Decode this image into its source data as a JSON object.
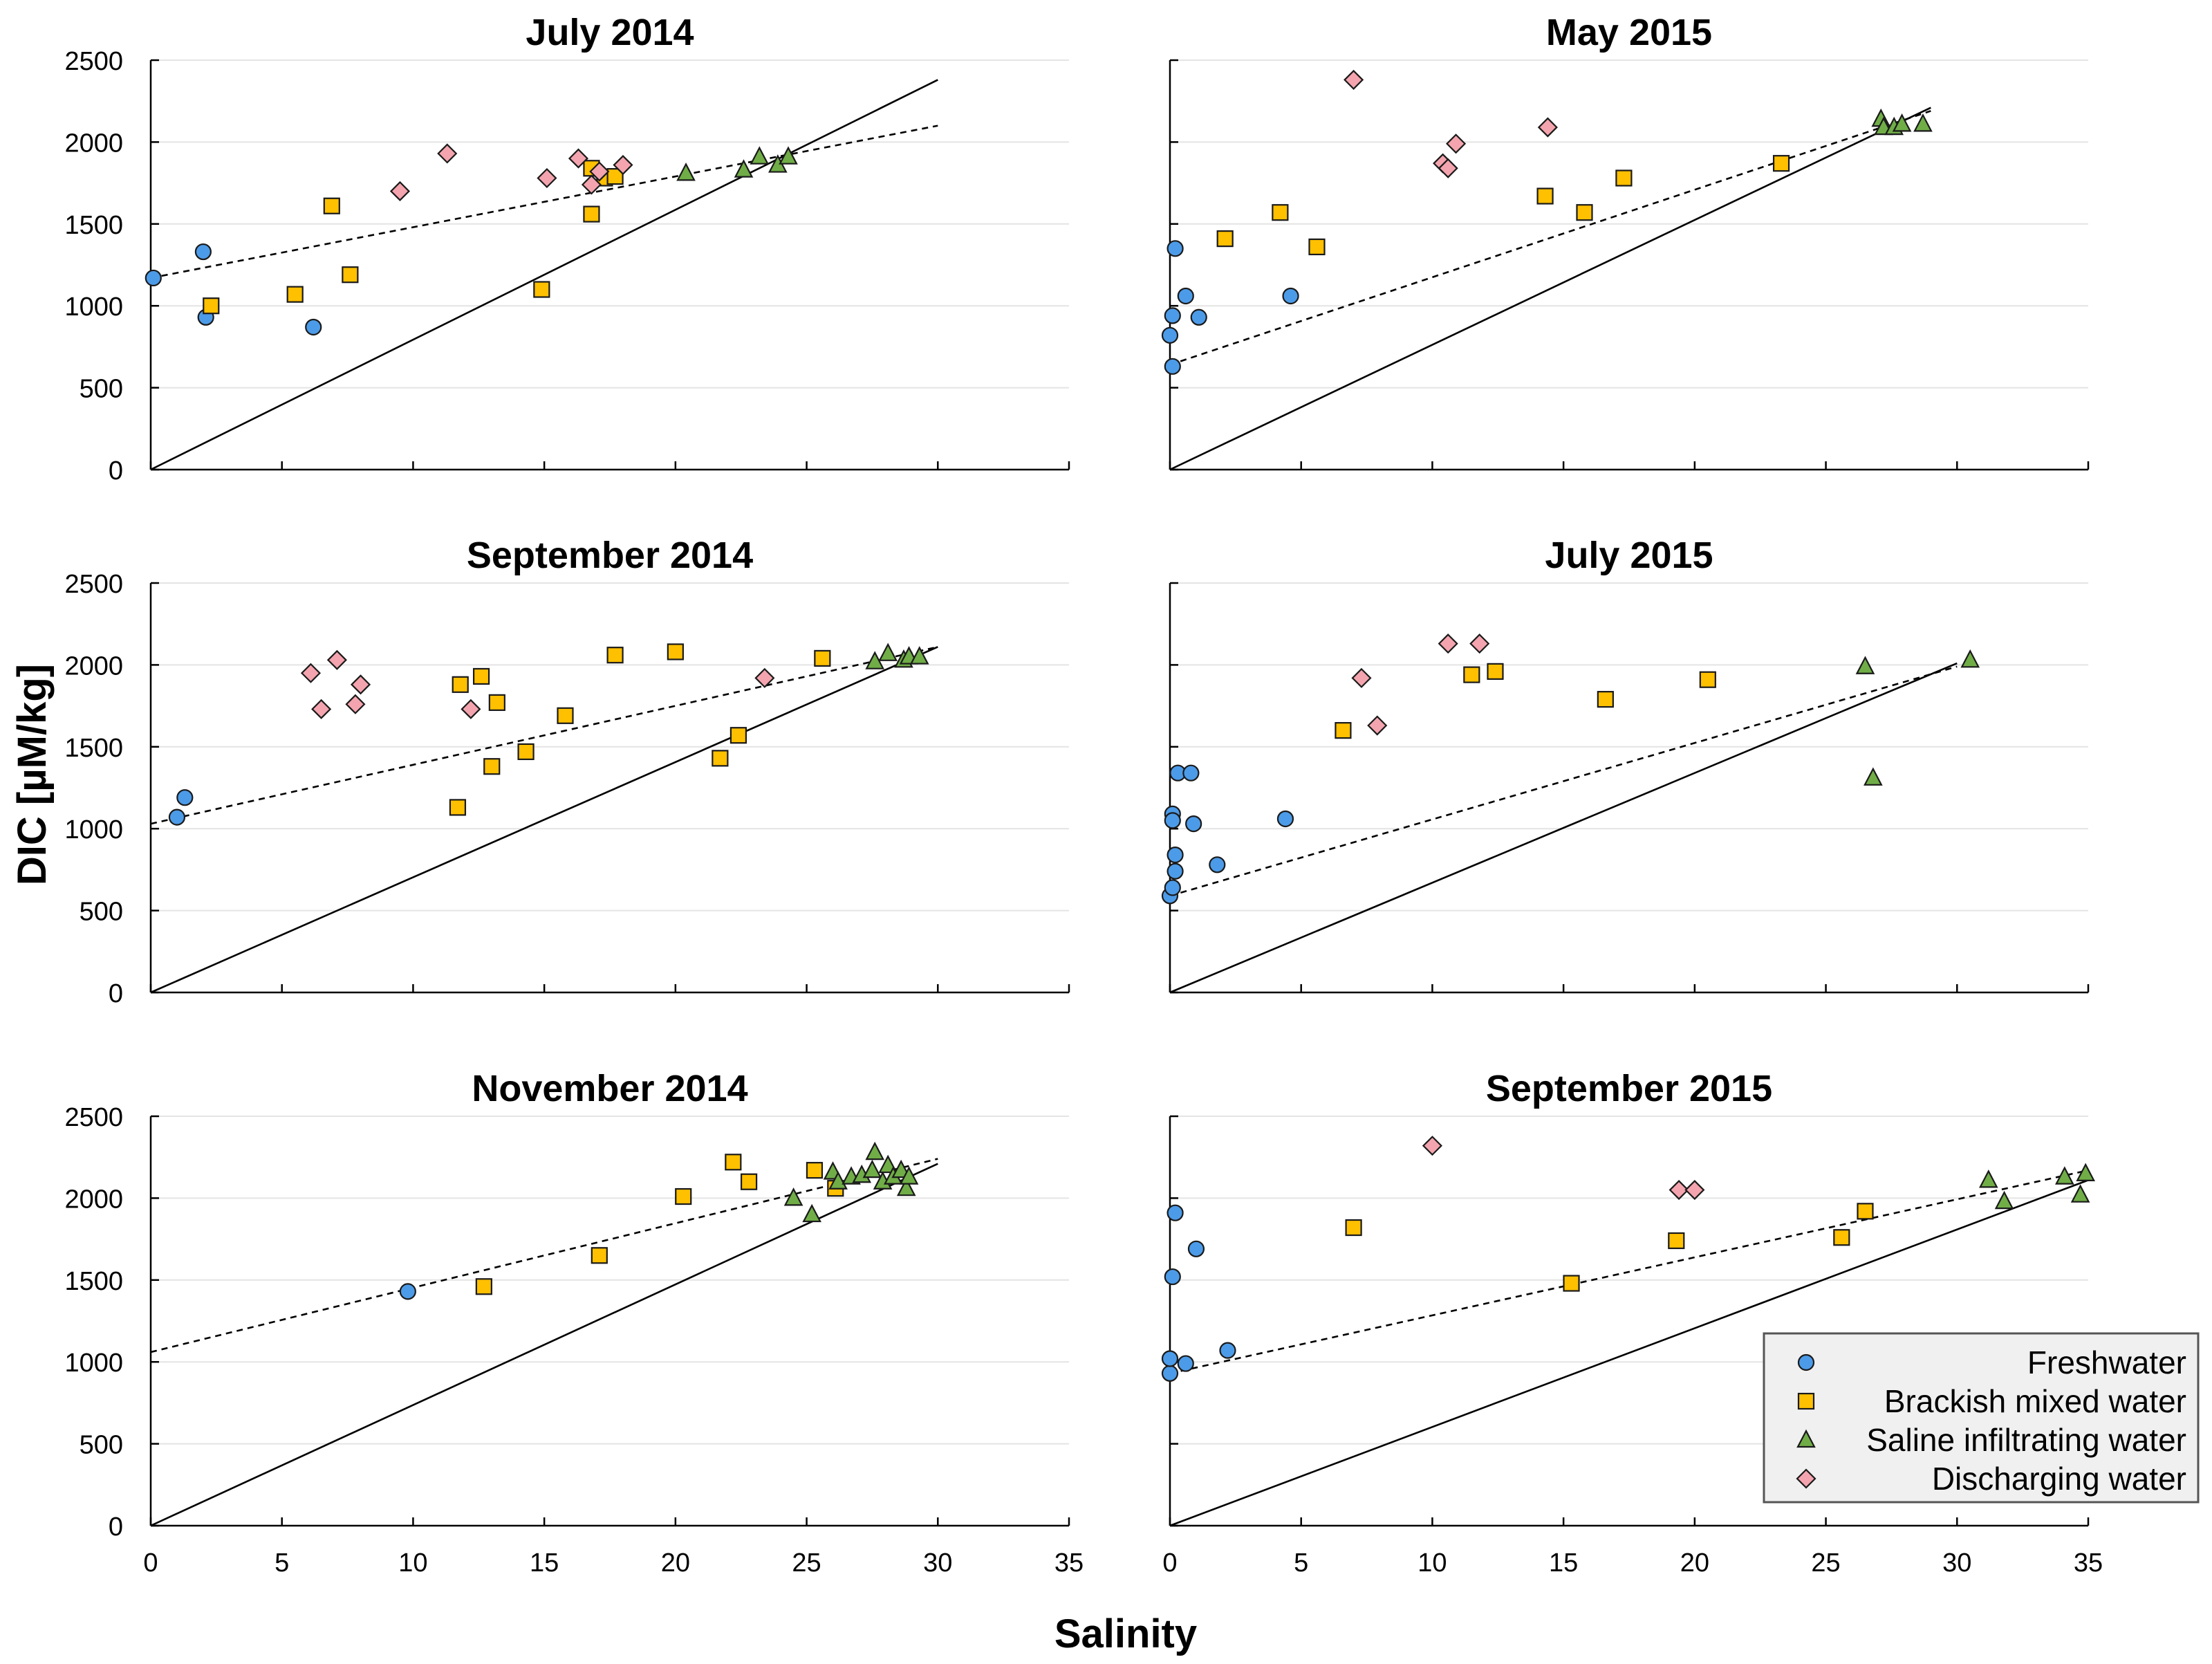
{
  "figure": {
    "xlabel": "Salinity",
    "ylabel": "DIC [µM/kg]",
    "x_ticks": [
      "0",
      "5",
      "10",
      "15",
      "20",
      "25",
      "30",
      "35"
    ],
    "y_ticks": [
      "0",
      "500",
      "1000",
      "1500",
      "2000",
      "2500"
    ]
  },
  "legend": {
    "entries": [
      {
        "label": "Freshwater",
        "marker": "circle",
        "color": "#4c9be8"
      },
      {
        "label": "Brackish mixed water",
        "marker": "square",
        "color": "#ffc000"
      },
      {
        "label": "Saline infiltrating water",
        "marker": "triangle",
        "color": "#70ad47"
      },
      {
        "label": "Discharging water",
        "marker": "diamond",
        "color": "#f4a4ae"
      }
    ]
  },
  "colors": {
    "freshwater": "#4c9be8",
    "brackish": "#ffc000",
    "saline": "#70ad47",
    "discharging": "#f4a4ae",
    "grid": "#e4e4e4",
    "legend_bg": "#f0f0f0"
  },
  "chart_data": [
    {
      "type": "scatter",
      "title": "July 2014",
      "xlim": [
        0,
        35
      ],
      "ylim": [
        0,
        2500
      ],
      "xlabel": "Salinity",
      "ylabel": "DIC [µM/kg]",
      "solid_line": {
        "x": [
          0,
          30
        ],
        "y": [
          0,
          2380
        ]
      },
      "dashed_line": {
        "x": [
          0,
          30
        ],
        "y": [
          1170,
          2100
        ]
      },
      "series": [
        {
          "name": "Freshwater",
          "x": [
            0.1,
            2.0,
            2.1,
            6.2
          ],
          "y": [
            1170,
            1330,
            930,
            870
          ]
        },
        {
          "name": "Brackish mixed water",
          "x": [
            2.3,
            5.5,
            6.9,
            7.6,
            14.9,
            16.8,
            16.8,
            17.3,
            17.7
          ],
          "y": [
            1000,
            1070,
            1610,
            1190,
            1100,
            1840,
            1560,
            1780,
            1790
          ]
        },
        {
          "name": "Saline infiltrating water",
          "x": [
            20.4,
            22.6,
            23.2,
            23.9,
            24.3
          ],
          "y": [
            1810,
            1830,
            1910,
            1860,
            1910
          ]
        },
        {
          "name": "Discharging water",
          "x": [
            9.5,
            11.3,
            15.1,
            16.3,
            16.8,
            17.1,
            18.0
          ],
          "y": [
            1700,
            1930,
            1780,
            1900,
            1740,
            1820,
            1860
          ]
        }
      ]
    },
    {
      "type": "scatter",
      "title": "May 2015",
      "xlim": [
        0,
        35
      ],
      "ylim": [
        0,
        2500
      ],
      "xlabel": "Salinity",
      "ylabel": "DIC [µM/kg]",
      "solid_line": {
        "x": [
          0,
          29
        ],
        "y": [
          0,
          2210
        ]
      },
      "dashed_line": {
        "x": [
          0,
          29
        ],
        "y": [
          640,
          2190
        ]
      },
      "series": [
        {
          "name": "Freshwater",
          "x": [
            0.1,
            0.2,
            0.0,
            0.1,
            0.6,
            1.1,
            4.6
          ],
          "y": [
            630,
            1350,
            820,
            940,
            1060,
            930,
            1060
          ]
        },
        {
          "name": "Brackish mixed water",
          "x": [
            2.1,
            4.2,
            5.6,
            14.3,
            15.8,
            17.3,
            23.3
          ],
          "y": [
            1410,
            1570,
            1360,
            1670,
            1570,
            1780,
            1870
          ]
        },
        {
          "name": "Saline infiltrating water",
          "x": [
            27.1,
            27.2,
            27.6,
            27.9,
            28.7
          ],
          "y": [
            2140,
            2090,
            2090,
            2110,
            2110
          ]
        },
        {
          "name": "Discharging water",
          "x": [
            7.0,
            10.4,
            10.6,
            10.9,
            14.4
          ],
          "y": [
            2380,
            1870,
            1840,
            1990,
            2090
          ]
        }
      ]
    },
    {
      "type": "scatter",
      "title": "September 2014",
      "xlim": [
        0,
        35
      ],
      "ylim": [
        0,
        2500
      ],
      "xlabel": "Salinity",
      "ylabel": "DIC [µM/kg]",
      "solid_line": {
        "x": [
          0,
          30
        ],
        "y": [
          0,
          2110
        ]
      },
      "dashed_line": {
        "x": [
          0,
          30
        ],
        "y": [
          1030,
          2110
        ]
      },
      "series": [
        {
          "name": "Freshwater",
          "x": [
            1.0,
            1.3
          ],
          "y": [
            1070,
            1190
          ]
        },
        {
          "name": "Brackish mixed water",
          "x": [
            11.7,
            11.8,
            12.6,
            13.0,
            13.2,
            15.8,
            17.7,
            14.3,
            20.0,
            21.7,
            22.4,
            25.6
          ],
          "y": [
            1130,
            1880,
            1930,
            1380,
            1770,
            1690,
            2060,
            1470,
            2080,
            1430,
            1570,
            2040
          ]
        },
        {
          "name": "Saline infiltrating water",
          "x": [
            27.6,
            28.1,
            28.7,
            28.9,
            29.3
          ],
          "y": [
            2020,
            2070,
            2030,
            2050,
            2050
          ]
        },
        {
          "name": "Discharging water",
          "x": [
            6.1,
            6.5,
            7.1,
            7.8,
            8.0,
            12.2,
            23.4
          ],
          "y": [
            1950,
            1730,
            2030,
            1760,
            1880,
            1730,
            1920
          ]
        }
      ]
    },
    {
      "type": "scatter",
      "title": "July 2015",
      "xlim": [
        0,
        35
      ],
      "ylim": [
        0,
        2500
      ],
      "xlabel": "Salinity",
      "ylabel": "DIC [µM/kg]",
      "solid_line": {
        "x": [
          0,
          30
        ],
        "y": [
          0,
          2010
        ]
      },
      "dashed_line": {
        "x": [
          0,
          30
        ],
        "y": [
          590,
          1990
        ]
      },
      "series": [
        {
          "name": "Freshwater",
          "x": [
            0.0,
            0.1,
            0.2,
            0.1,
            0.1,
            0.2,
            0.3,
            0.8,
            0.9,
            1.8,
            4.4
          ],
          "y": [
            590,
            640,
            840,
            1090,
            1050,
            740,
            1340,
            1340,
            1030,
            780,
            1060
          ]
        },
        {
          "name": "Brackish mixed water",
          "x": [
            6.6,
            11.5,
            12.4,
            16.6,
            20.5
          ],
          "y": [
            1600,
            1940,
            1960,
            1790,
            1910
          ]
        },
        {
          "name": "Saline infiltrating water",
          "x": [
            26.5,
            26.8,
            30.5
          ],
          "y": [
            1990,
            1310,
            2030
          ]
        },
        {
          "name": "Discharging water",
          "x": [
            7.3,
            7.9,
            10.6,
            11.8
          ],
          "y": [
            1920,
            1630,
            2130,
            2130
          ]
        }
      ]
    },
    {
      "type": "scatter",
      "title": "November 2014",
      "xlim": [
        0,
        35
      ],
      "ylim": [
        0,
        2500
      ],
      "xlabel": "Salinity",
      "ylabel": "DIC [µM/kg]",
      "solid_line": {
        "x": [
          0,
          30
        ],
        "y": [
          0,
          2210
        ]
      },
      "dashed_line": {
        "x": [
          0,
          30
        ],
        "y": [
          1060,
          2240
        ]
      },
      "series": [
        {
          "name": "Freshwater",
          "x": [
            9.8
          ],
          "y": [
            1430
          ]
        },
        {
          "name": "Brackish mixed water",
          "x": [
            12.7,
            17.1,
            20.3,
            22.2,
            22.8,
            25.3,
            26.1
          ],
          "y": [
            1460,
            1650,
            2010,
            2220,
            2100,
            2170,
            2060
          ]
        },
        {
          "name": "Saline infiltrating water",
          "x": [
            24.5,
            25.2,
            26.0,
            26.2,
            26.7,
            27.1,
            27.5,
            27.6,
            27.9,
            28.1,
            28.3,
            28.6,
            28.8,
            28.9
          ],
          "y": [
            2000,
            1900,
            2160,
            2100,
            2130,
            2140,
            2170,
            2280,
            2100,
            2200,
            2130,
            2170,
            2060,
            2130
          ]
        },
        {
          "name": "Discharging water",
          "x": [],
          "y": []
        }
      ]
    },
    {
      "type": "scatter",
      "title": "September 2015",
      "xlim": [
        0,
        35
      ],
      "ylim": [
        0,
        2500
      ],
      "xlabel": "Salinity",
      "ylabel": "DIC [µM/kg]",
      "solid_line": {
        "x": [
          0,
          35
        ],
        "y": [
          0,
          2110
        ]
      },
      "dashed_line": {
        "x": [
          0,
          35
        ],
        "y": [
          930,
          2170
        ]
      },
      "series": [
        {
          "name": "Freshwater",
          "x": [
            0.0,
            0.0,
            0.1,
            0.2,
            0.6,
            1.0,
            2.2
          ],
          "y": [
            930,
            1020,
            1520,
            1910,
            990,
            1690,
            1070
          ]
        },
        {
          "name": "Brackish mixed water",
          "x": [
            7.0,
            15.3,
            19.3,
            25.6,
            26.5
          ],
          "y": [
            1820,
            1480,
            1740,
            1760,
            1920
          ]
        },
        {
          "name": "Saline infiltrating water",
          "x": [
            31.2,
            31.8,
            34.1,
            34.7,
            34.9
          ],
          "y": [
            2110,
            1980,
            2130,
            2020,
            2150
          ]
        },
        {
          "name": "Discharging water",
          "x": [
            10.0,
            19.4,
            20.0
          ],
          "y": [
            2320,
            2050,
            2050
          ]
        }
      ]
    }
  ]
}
